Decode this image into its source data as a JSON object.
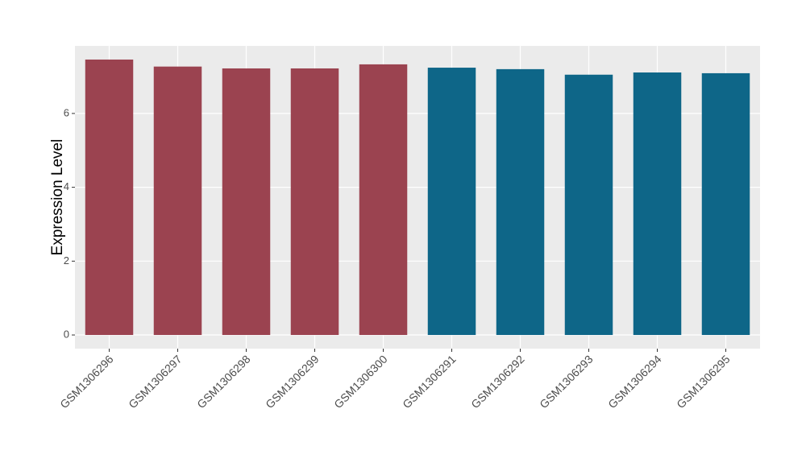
{
  "chart_data": {
    "type": "bar",
    "y_label": "Expression Level",
    "categories": [
      "GSM1306296",
      "GSM1306297",
      "GSM1306298",
      "GSM1306299",
      "GSM1306300",
      "GSM1306291",
      "GSM1306292",
      "GSM1306293",
      "GSM1306294",
      "GSM1306295"
    ],
    "values": [
      7.46,
      7.27,
      7.22,
      7.22,
      7.33,
      7.24,
      7.2,
      7.05,
      7.11,
      7.09
    ],
    "colors": [
      "#9b4350",
      "#9b4350",
      "#9b4350",
      "#9b4350",
      "#9b4350",
      "#0e6688",
      "#0e6688",
      "#0e6688",
      "#0e6688",
      "#0e6688"
    ],
    "ylim": [
      -0.37,
      7.83
    ],
    "yticks": [
      0,
      2,
      4,
      6
    ],
    "grid": true
  }
}
